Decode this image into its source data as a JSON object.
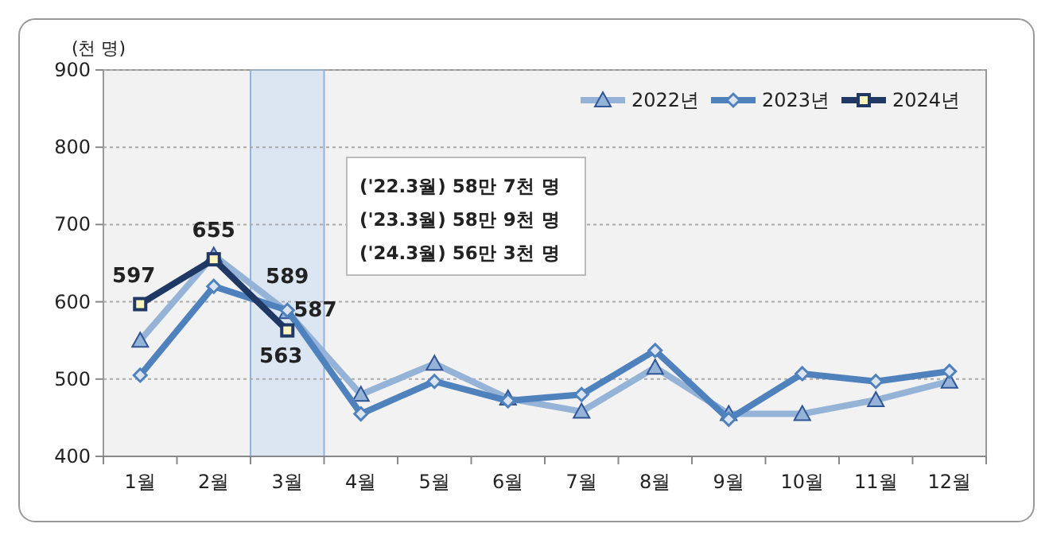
{
  "chart_data": {
    "type": "line",
    "ylabel": "(천 명)",
    "categories": [
      "1월",
      "2월",
      "3월",
      "4월",
      "5월",
      "6월",
      "7월",
      "8월",
      "9월",
      "10월",
      "11월",
      "12월"
    ],
    "ylim": [
      400,
      900
    ],
    "yticks": [
      400,
      500,
      600,
      700,
      800,
      900
    ],
    "grid": "y",
    "legend": "top right",
    "series": [
      {
        "name": "2022년",
        "color": "#95b3d7",
        "marker": "triangle",
        "values": [
          550,
          660,
          587,
          480,
          520,
          475,
          458,
          515,
          455,
          455,
          473,
          497
        ],
        "value_labels": [
          null,
          null,
          "587",
          null,
          null,
          null,
          null,
          null,
          null,
          null,
          null,
          null
        ]
      },
      {
        "name": "2023년",
        "color": "#4f81bd",
        "marker": "diamond",
        "values": [
          505,
          620,
          589,
          455,
          497,
          472,
          480,
          537,
          448,
          507,
          497,
          510
        ],
        "value_labels": [
          null,
          null,
          "589",
          null,
          null,
          null,
          null,
          null,
          null,
          null,
          null,
          null
        ]
      },
      {
        "name": "2024년",
        "color": "#1f3864",
        "marker": "square",
        "values": [
          597,
          655,
          563,
          null,
          null,
          null,
          null,
          null,
          null,
          null,
          null,
          null
        ],
        "value_labels": [
          "597",
          "655",
          "563",
          null,
          null,
          null,
          null,
          null,
          null,
          null,
          null,
          null
        ]
      }
    ],
    "bands": [
      {
        "axis": "x",
        "from": "3월",
        "to": "3월",
        "color": "#dce6f2"
      }
    ],
    "annotations": [
      "('22.3월) 58만 7천 명",
      "('23.3월) 58만 9천 명",
      "('24.3월) 56만 3천 명"
    ]
  }
}
